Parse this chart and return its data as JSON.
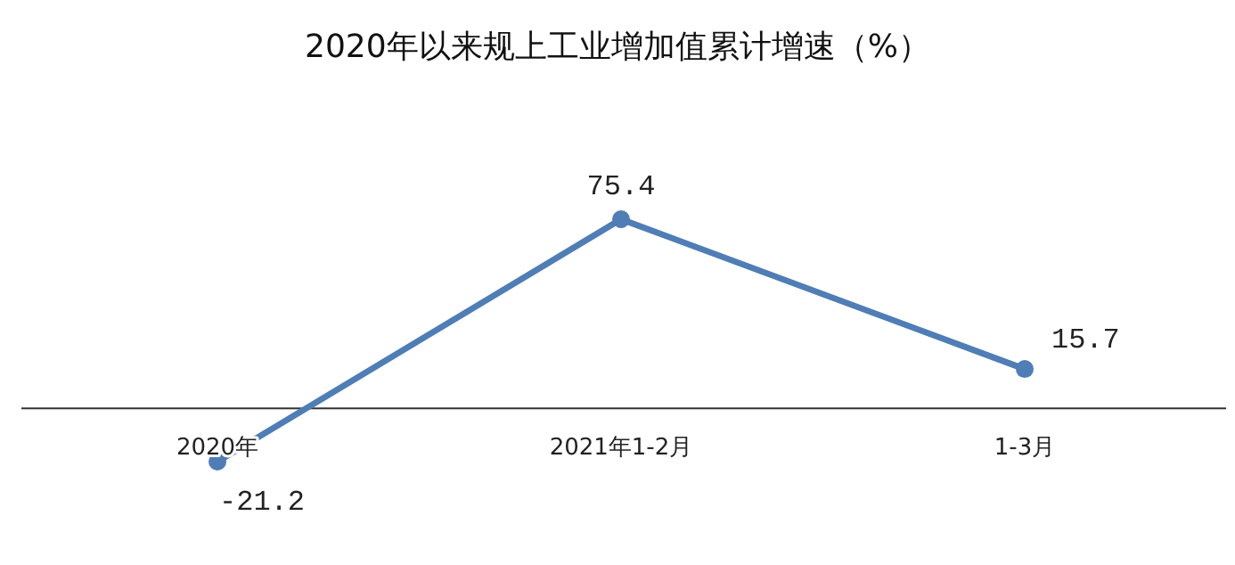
{
  "chart_data": {
    "type": "line",
    "title": "2020年以来规上工业增加值累计增速（%）",
    "categories": [
      "2020年",
      "2021年1-2月",
      "1-3月"
    ],
    "series": [
      {
        "color": "#4f7db5",
        "values": [
          -21.2,
          75.4,
          15.7
        ]
      }
    ],
    "data_labels": true,
    "marker": "circle",
    "line_style": "solid"
  }
}
